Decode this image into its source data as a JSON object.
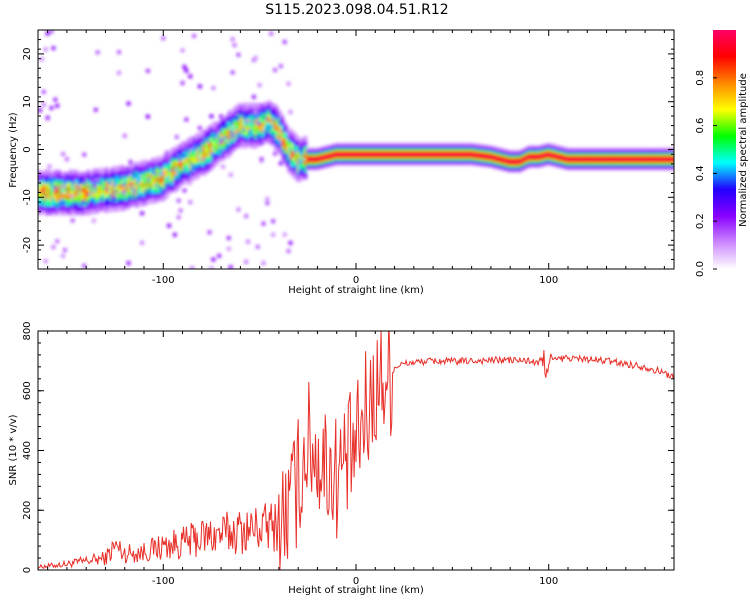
{
  "title": "S115.2023.098.04.51.R12",
  "chart_data": [
    {
      "type": "heatmap",
      "xlabel": "Height of straight line (km)",
      "ylabel": "Frequency (Hz)",
      "xlim": [
        -165,
        165
      ],
      "ylim": [
        -25,
        25
      ],
      "xticks": [
        -100,
        0,
        100
      ],
      "yticks": [
        -20,
        -10,
        0,
        10,
        20
      ],
      "xtick_labels": [
        "-100",
        "0",
        "100"
      ],
      "ytick_labels": [
        "-20",
        "-10",
        "0",
        "10",
        "20"
      ],
      "colorbar": {
        "label": "Normalized spectral amplitude",
        "range": [
          0.0,
          1.0
        ],
        "ticks": [
          0.0,
          0.2,
          0.4,
          0.6,
          0.8
        ],
        "tick_labels": [
          "0.0",
          "0.2",
          "0.4",
          "0.6",
          "0.8"
        ],
        "colormap": [
          "#ffffff",
          "#cc88ff",
          "#8800ff",
          "#2200ff",
          "#00ffff",
          "#00ff00",
          "#ffff00",
          "#ff8800",
          "#ff0000",
          "#ff0066"
        ]
      },
      "ridge": {
        "x": [
          -165,
          -150,
          -140,
          -120,
          -110,
          -100,
          -90,
          -80,
          -70,
          -60,
          -50,
          -45,
          -40,
          -35,
          -30,
          -25,
          -20,
          -10,
          0,
          10,
          20,
          40,
          60,
          70,
          80,
          85,
          90,
          95,
          100,
          110,
          120,
          140,
          165
        ],
        "y": [
          -9,
          -9,
          -9,
          -8,
          -7,
          -6,
          -3,
          -1,
          2,
          5,
          5,
          6,
          4,
          0,
          -2,
          -2,
          -2,
          -1,
          -1,
          -1,
          -1,
          -1,
          -1,
          -1.5,
          -2.5,
          -2.5,
          -1.5,
          -1.5,
          -1,
          -2,
          -2,
          -2,
          -2
        ]
      }
    },
    {
      "type": "line",
      "xlabel": "Height of straight line (km)",
      "ylabel": "SNR (10 * v/v)",
      "xlim": [
        -165,
        165
      ],
      "ylim": [
        0,
        800
      ],
      "xticks": [
        -100,
        0,
        100
      ],
      "yticks": [
        0,
        200,
        400,
        600,
        800
      ],
      "xtick_labels": [
        "-100",
        "0",
        "100"
      ],
      "ytick_labels": [
        "0",
        "200",
        "400",
        "600",
        "800"
      ],
      "color": "#e8302a",
      "series": [
        {
          "x": [
            -165,
            -150,
            -140,
            -130,
            -125,
            -120,
            -110,
            -100,
            -90,
            -80,
            -70,
            -60,
            -50,
            -40,
            -35,
            -30,
            -25,
            -20,
            -15,
            -10,
            -5,
            0,
            5,
            10,
            15,
            20,
            25,
            30,
            40,
            50,
            60,
            70,
            80,
            90,
            95,
            100,
            105,
            110,
            120,
            130,
            140,
            150,
            160,
            165
          ],
          "values": [
            10,
            20,
            30,
            40,
            80,
            55,
            60,
            80,
            90,
            110,
            120,
            130,
            140,
            150,
            200,
            300,
            430,
            380,
            350,
            320,
            360,
            400,
            520,
            600,
            650,
            680,
            690,
            695,
            700,
            698,
            700,
            702,
            703,
            700,
            690,
            700,
            705,
            710,
            705,
            700,
            690,
            680,
            660,
            645
          ]
        }
      ]
    }
  ]
}
